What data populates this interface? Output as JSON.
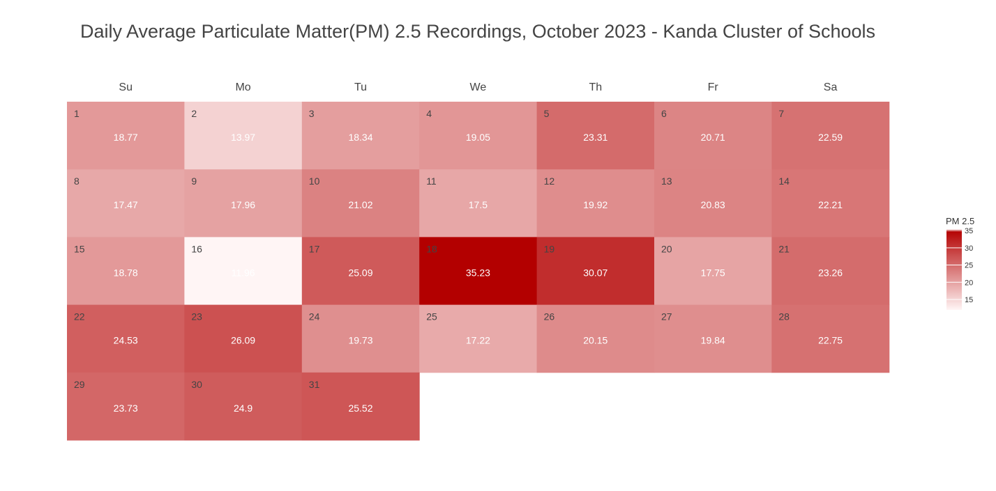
{
  "chart_data": {
    "type": "heatmap",
    "title": "Daily Average Particulate Matter(PM) 2.5 Recordings, October 2023 - Kanda Cluster of Schools",
    "weekdays": [
      "Su",
      "Mo",
      "Tu",
      "We",
      "Th",
      "Fr",
      "Sa"
    ],
    "first_weekday_index": 0,
    "days": [
      1,
      2,
      3,
      4,
      5,
      6,
      7,
      8,
      9,
      10,
      11,
      12,
      13,
      14,
      15,
      16,
      17,
      18,
      19,
      20,
      21,
      22,
      23,
      24,
      25,
      26,
      27,
      28,
      29,
      30,
      31
    ],
    "values": [
      18.77,
      13.97,
      18.34,
      19.05,
      23.31,
      20.71,
      22.59,
      17.47,
      17.96,
      21.02,
      17.5,
      19.92,
      20.83,
      22.21,
      18.78,
      11.96,
      25.09,
      35.23,
      30.07,
      17.75,
      23.26,
      24.53,
      26.09,
      19.73,
      17.22,
      20.15,
      19.84,
      22.75,
      23.73,
      24.9,
      25.52
    ],
    "value_labels": [
      "18.77",
      "13.97",
      "18.34",
      "19.05",
      "23.31",
      "20.71",
      "22.59",
      "17.47",
      "17.96",
      "21.02",
      "17.5",
      "19.92",
      "20.83",
      "22.21",
      "18.78",
      "11.96",
      "25.09",
      "35.23",
      "30.07",
      "17.75",
      "23.26",
      "24.53",
      "26.09",
      "19.73",
      "17.22",
      "20.15",
      "19.84",
      "22.75",
      "23.73",
      "24.9",
      "25.52"
    ],
    "colorscale": {
      "min": 11.96,
      "max": 35.23,
      "low_color": "#fff5f5",
      "high_color": "#b30000"
    },
    "legend": {
      "title": "PM 2.5",
      "ticks": [
        "35",
        "30",
        "25",
        "20",
        "15"
      ],
      "placement": "right"
    }
  }
}
